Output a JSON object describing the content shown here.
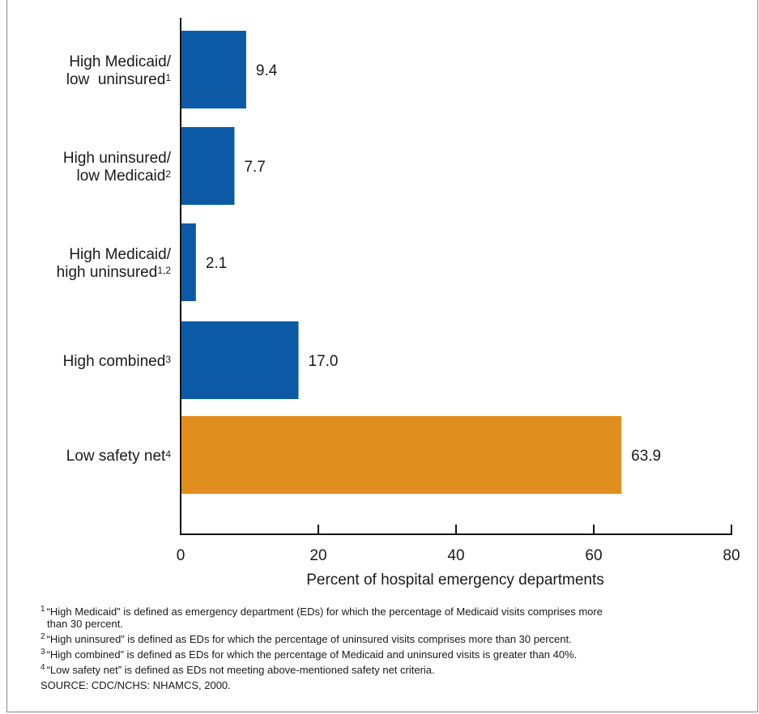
{
  "chart_data": {
    "type": "bar",
    "orientation": "horizontal",
    "categories": [
      {
        "line1": "High Medicaid/",
        "line2": "low  uninsured",
        "sup": "1"
      },
      {
        "line1": "High uninsured/",
        "line2": "low Medicaid",
        "sup": "2"
      },
      {
        "line1": "High Medicaid/",
        "line2": "high uninsured",
        "sup": "1,2"
      },
      {
        "line1": "",
        "line2": "High combined",
        "sup": "3"
      },
      {
        "line1": "",
        "line2": "Low safety net",
        "sup": "4"
      }
    ],
    "values": [
      9.4,
      7.7,
      2.1,
      17.0,
      63.9
    ],
    "value_labels": [
      "9.4",
      "7.7",
      "2.1",
      "17.0",
      "63.9"
    ],
    "colors": [
      "#0c5aa6",
      "#0c5aa6",
      "#0c5aa6",
      "#0c5aa6",
      "#e08e1e"
    ],
    "xlabel": "Percent of hospital emergency departments",
    "xlim": [
      0,
      80
    ],
    "xticks": [
      "0",
      "20",
      "40",
      "60",
      "80"
    ],
    "grid": false
  },
  "footnotes": [
    {
      "sup": "1",
      "text": "“High Medicaid” is defined as emergency department (EDs) for which the percentage of Medicaid visits comprises more",
      "cont": "than 30 percent."
    },
    {
      "sup": "2",
      "text": "“High uninsured” is defined as EDs for which the percentage of uninsured visits comprises more than 30 percent.",
      "cont": ""
    },
    {
      "sup": "3",
      "text": "“High combined” is defined as EDs for which the percentage of Medicaid and uninsured visits is greater than 40%.",
      "cont": ""
    },
    {
      "sup": "4",
      "text": "“Low safety net” is defined as EDs not meeting above-mentioned safety net criteria.",
      "cont": ""
    }
  ],
  "source": "SOURCE: CDC/NCHS: NHAMCS, 2000."
}
